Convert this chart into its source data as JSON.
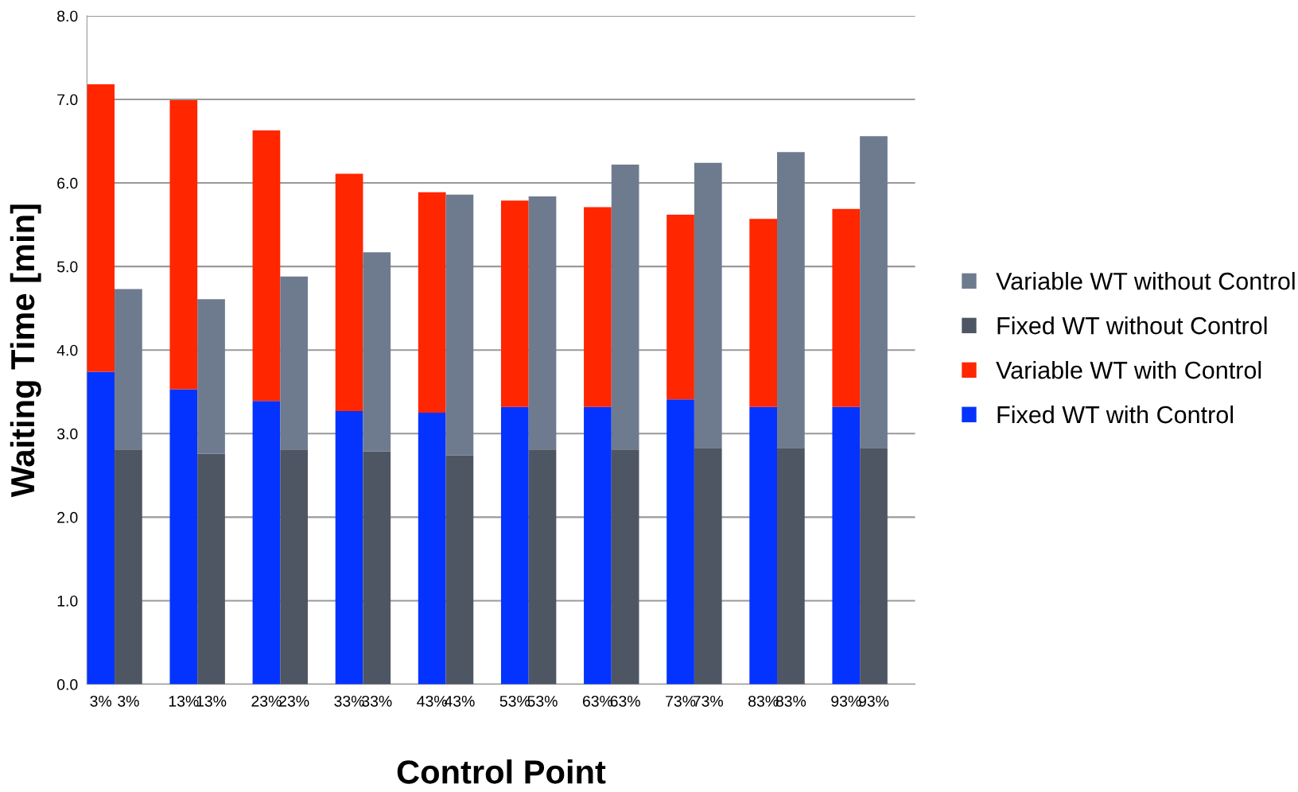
{
  "chart_data": {
    "type": "bar",
    "stacked": true,
    "xlabel": "Control Point",
    "ylabel": "Waiting Time [min]",
    "categories": [
      "3%",
      "3%",
      "13%",
      "13%",
      "23%",
      "23%",
      "33%",
      "33%",
      "43%",
      "43%",
      "53%",
      "53%",
      "63%",
      "63%",
      "73%",
      "73%",
      "83%",
      "83%",
      "93%",
      "93%"
    ],
    "series": [
      {
        "name": "Fixed WT with Control",
        "color": "#0433ff",
        "values": [
          3.74,
          null,
          3.53,
          null,
          3.39,
          null,
          3.27,
          null,
          3.25,
          null,
          3.32,
          null,
          3.32,
          null,
          3.41,
          null,
          3.32,
          null,
          3.32,
          null
        ]
      },
      {
        "name": "Variable WT with Control",
        "color": "#ff2600",
        "values": [
          3.44,
          null,
          3.46,
          null,
          3.24,
          null,
          2.84,
          null,
          2.64,
          null,
          2.47,
          null,
          2.39,
          null,
          2.21,
          null,
          2.25,
          null,
          2.37,
          null
        ]
      },
      {
        "name": "Fixed WT without Control",
        "color": "#4f5663",
        "values": [
          null,
          2.81,
          null,
          2.76,
          null,
          2.81,
          null,
          2.79,
          null,
          2.74,
          null,
          2.81,
          null,
          2.81,
          null,
          2.83,
          null,
          2.83,
          null,
          2.83
        ]
      },
      {
        "name": "Variable WT without Control",
        "color": "#6e7b8f",
        "values": [
          null,
          1.92,
          null,
          1.85,
          null,
          2.07,
          null,
          2.38,
          null,
          3.12,
          null,
          3.03,
          null,
          3.41,
          null,
          3.41,
          null,
          3.54,
          null,
          3.73
        ]
      }
    ],
    "ylim": [
      0,
      8
    ],
    "yticks": [
      {
        "value": 0,
        "label": "0.0"
      },
      {
        "value": 1,
        "label": "1.0"
      },
      {
        "value": 2,
        "label": "2.0"
      },
      {
        "value": 3,
        "label": "3.0"
      },
      {
        "value": 4,
        "label": "4.0"
      },
      {
        "value": 5,
        "label": "5.0"
      },
      {
        "value": 6,
        "label": "6.0"
      },
      {
        "value": 7,
        "label": "7.0"
      },
      {
        "value": 8,
        "label": "8.0"
      }
    ],
    "grid": "y",
    "legend": "right"
  }
}
